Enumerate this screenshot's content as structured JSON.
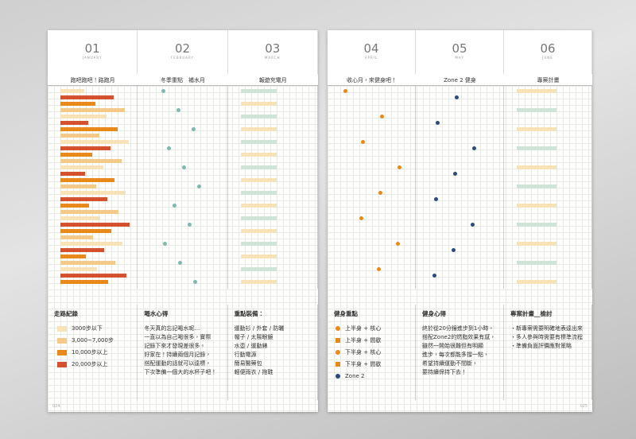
{
  "left": {
    "months": [
      {
        "num": "01",
        "name": "JANUARY",
        "title": "跑吧跑吧！路跑月"
      },
      {
        "num": "02",
        "name": "FEBRUARY",
        "title": "冬季重點　補水月"
      },
      {
        "num": "03",
        "name": "MARCH",
        "title": "報遊充電月"
      }
    ],
    "boxes": [
      {
        "title": "走路紀錄",
        "items": [
          "3000步以下",
          "3,000~7,000步",
          "10,000步以上",
          "20,000步以上"
        ]
      },
      {
        "title": "喝水心得",
        "items": [
          "冬天真的忘記喝水呢…",
          "一直以為自己喝很多，實際",
          "記錄下來才發現差很多。",
          "好家在！持續兩個月記錄，",
          "搭配運動的話就可以達標，",
          "下次準備一個大的水杯子吧！"
        ]
      },
      {
        "title": "重點裝備：",
        "items": [
          "運動衫 / 外套 / 防曬",
          "帽子 / 太陽眼鏡",
          "水壺 / 運動錶",
          "行動電源",
          "簡易醫藥包",
          "輕便雨衣 / 拖鞋"
        ]
      }
    ],
    "page_no": "024"
  },
  "right": {
    "months": [
      {
        "num": "04",
        "name": "APRIL",
        "title": "收心月，來健身吧！"
      },
      {
        "num": "05",
        "name": "MAY",
        "title": "Zone 2 健身"
      },
      {
        "num": "06",
        "name": "JUNE",
        "title": "專案計畫"
      }
    ],
    "boxes": [
      {
        "title": "健身重點",
        "items": [
          "上半身 + 核心",
          "上半身 + 間歇",
          "下半身 + 核心",
          "下半身 + 間歇",
          "Zone 2"
        ]
      },
      {
        "title": "健身心得",
        "items": [
          "終於從20分鐘進步到1小時，",
          "搭配Zone2的燃脂效果有感，",
          "雖然一開始很難但有明顯",
          "進步，每次都能多撐一點，",
          "希望持續運動不間斷，",
          "要持續保持下去！"
        ]
      },
      {
        "title": "專案計畫__檢討",
        "items": [
          "・新專案需要明確地表達出來",
          "・多人參與時需要有標準流程",
          "・準備負面評價應對策略"
        ]
      }
    ],
    "page_no": "025"
  }
}
